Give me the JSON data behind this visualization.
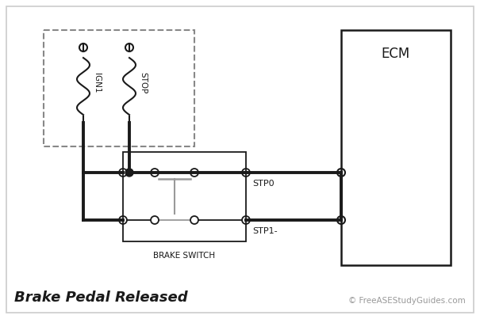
{
  "bg_color": "#ffffff",
  "line_color": "#1a1a1a",
  "gray_color": "#999999",
  "dashed_color": "#888888",
  "title": "Brake Pedal Released",
  "copyright": "© FreeASEStudyGuides.com",
  "ecm_label": "ECM",
  "brake_switch_label": "BRAKE SWITCH",
  "ign1_label": "IGN1",
  "stop_label": "STOP",
  "stp0_label": "STP0",
  "stp1_label": "STP1-",
  "lw_thick": 2.8,
  "lw_thin": 1.3,
  "lw_medium": 1.8
}
